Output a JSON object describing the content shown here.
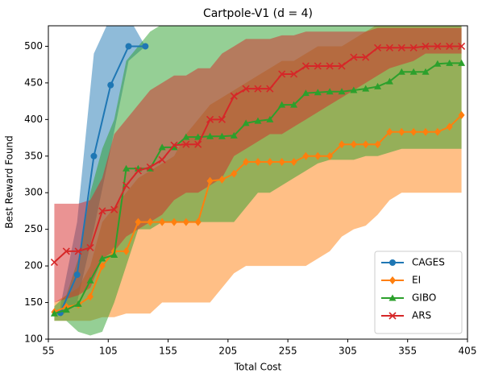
{
  "chart_data": {
    "type": "line",
    "title": "Cartpole-V1 (d = 4)",
    "x_label": "Total Cost",
    "y_label": "Best Reward Found",
    "xlim": [
      55,
      405
    ],
    "ylim": [
      100,
      528
    ],
    "xticks": [
      55,
      105,
      155,
      205,
      255,
      305,
      355,
      405
    ],
    "yticks": [
      100,
      150,
      200,
      250,
      300,
      350,
      400,
      450,
      500
    ],
    "legend": "lower right",
    "series": [
      {
        "name": "CAGES",
        "color": "#1f77b4",
        "marker": "circle",
        "x": [
          65,
          79,
          93,
          107,
          122,
          136
        ],
        "values": [
          136,
          188,
          350,
          447,
          500,
          500
        ],
        "lower": [
          130,
          150,
          250,
          360,
          480,
          500
        ],
        "upper": [
          145,
          260,
          490,
          540,
          540,
          500
        ]
      },
      {
        "name": "EI",
        "color": "#ff7f0e",
        "marker": "diamond",
        "x": [
          60,
          70,
          80,
          90,
          100,
          110,
          120,
          130,
          140,
          150,
          160,
          170,
          180,
          190,
          200,
          210,
          220,
          230,
          240,
          250,
          260,
          270,
          280,
          290,
          300,
          310,
          320,
          330,
          340,
          350,
          360,
          370,
          380,
          390,
          400
        ],
        "values": [
          137,
          144,
          147,
          158,
          200,
          220,
          220,
          260,
          260,
          260,
          260,
          260,
          260,
          316,
          318,
          326,
          342,
          342,
          342,
          342,
          342,
          350,
          350,
          350,
          366,
          366,
          366,
          366,
          383,
          383,
          383,
          383,
          383,
          390,
          406
        ],
        "lower": [
          125,
          125,
          125,
          125,
          130,
          130,
          135,
          135,
          135,
          150,
          150,
          150,
          150,
          150,
          170,
          190,
          200,
          200,
          200,
          200,
          200,
          200,
          210,
          220,
          240,
          250,
          255,
          270,
          290,
          300,
          300,
          300,
          300,
          300,
          300
        ],
        "upper": [
          150,
          160,
          170,
          200,
          260,
          280,
          300,
          320,
          330,
          340,
          350,
          380,
          400,
          420,
          430,
          440,
          450,
          460,
          470,
          480,
          480,
          490,
          500,
          500,
          500,
          510,
          520,
          530,
          530,
          530,
          530,
          530,
          530,
          530,
          530
        ]
      },
      {
        "name": "GIBO",
        "color": "#2ca02c",
        "marker": "triangle",
        "x": [
          60,
          70,
          80,
          90,
          100,
          110,
          120,
          130,
          140,
          150,
          160,
          170,
          180,
          190,
          200,
          210,
          220,
          230,
          240,
          250,
          260,
          270,
          280,
          290,
          300,
          310,
          320,
          330,
          340,
          350,
          360,
          370,
          380,
          390,
          400
        ],
        "values": [
          135,
          140,
          148,
          180,
          210,
          215,
          333,
          333,
          333,
          362,
          362,
          376,
          376,
          377,
          377,
          378,
          395,
          398,
          400,
          420,
          420,
          436,
          437,
          438,
          438,
          440,
          442,
          445,
          452,
          465,
          465,
          465,
          476,
          477,
          477
        ],
        "lower": [
          125,
          125,
          110,
          105,
          110,
          150,
          200,
          250,
          250,
          260,
          260,
          260,
          260,
          260,
          260,
          260,
          280,
          300,
          300,
          310,
          320,
          330,
          340,
          345,
          345,
          345,
          350,
          350,
          355,
          360,
          360,
          360,
          360,
          360,
          360
        ],
        "upper": [
          145,
          160,
          210,
          300,
          360,
          400,
          480,
          500,
          520,
          530,
          530,
          530,
          530,
          530,
          530,
          530,
          530,
          530,
          530,
          530,
          530,
          530,
          530,
          530,
          530,
          530,
          530,
          530,
          530,
          530,
          530,
          530,
          530,
          530,
          530
        ]
      },
      {
        "name": "ARS",
        "color": "#d62728",
        "marker": "x",
        "x": [
          60,
          70,
          80,
          90,
          100,
          110,
          120,
          130,
          140,
          150,
          160,
          170,
          180,
          190,
          200,
          210,
          220,
          230,
          240,
          250,
          260,
          270,
          280,
          290,
          300,
          310,
          320,
          330,
          340,
          350,
          360,
          370,
          380,
          390,
          400
        ],
        "values": [
          205,
          220,
          220,
          225,
          275,
          277,
          310,
          330,
          335,
          345,
          365,
          366,
          366,
          400,
          400,
          432,
          442,
          442,
          442,
          462,
          462,
          473,
          473,
          473,
          473,
          485,
          485,
          498,
          498,
          498,
          498,
          500,
          500,
          500,
          500
        ],
        "lower": [
          150,
          155,
          160,
          170,
          210,
          220,
          240,
          250,
          260,
          270,
          290,
          300,
          300,
          310,
          320,
          350,
          360,
          370,
          380,
          380,
          390,
          400,
          410,
          420,
          430,
          440,
          450,
          460,
          470,
          475,
          480,
          490,
          490,
          490,
          490
        ],
        "upper": [
          285,
          285,
          285,
          290,
          320,
          380,
          400,
          420,
          440,
          450,
          460,
          460,
          470,
          470,
          490,
          500,
          510,
          510,
          510,
          515,
          515,
          520,
          520,
          520,
          520,
          520,
          520,
          525,
          525,
          525,
          525,
          525,
          525,
          525,
          525
        ]
      }
    ]
  }
}
